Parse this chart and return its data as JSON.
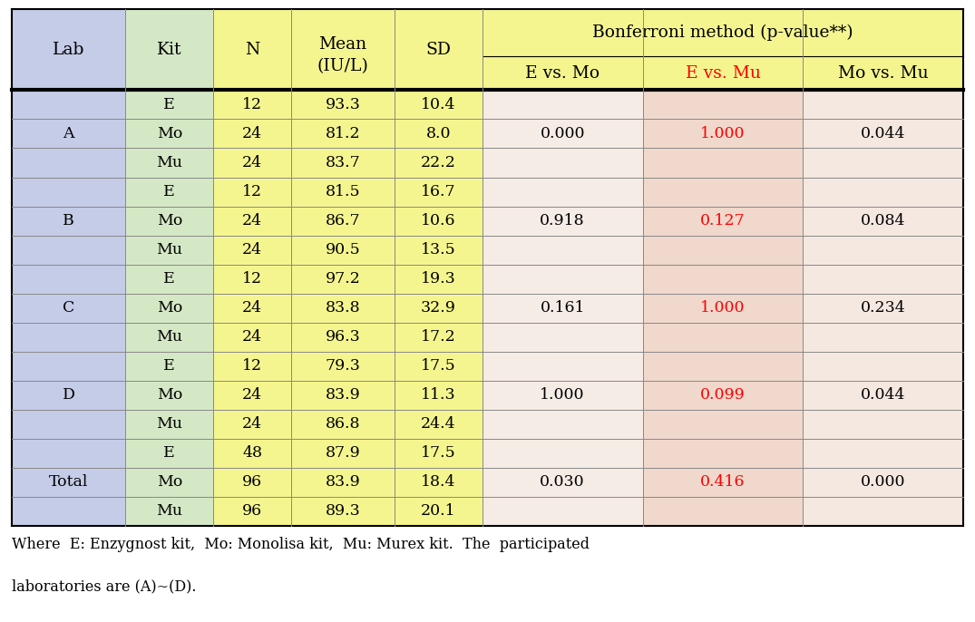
{
  "rows": [
    [
      "A",
      "E",
      "12",
      "93.3",
      "10.4",
      "",
      "",
      ""
    ],
    [
      "A",
      "Mo",
      "24",
      "81.2",
      "8.0",
      "0.000",
      "1.000",
      "0.044"
    ],
    [
      "A",
      "Mu",
      "24",
      "83.7",
      "22.2",
      "",
      "",
      ""
    ],
    [
      "B",
      "E",
      "12",
      "81.5",
      "16.7",
      "",
      "",
      ""
    ],
    [
      "B",
      "Mo",
      "24",
      "86.7",
      "10.6",
      "0.918",
      "0.127",
      "0.084"
    ],
    [
      "B",
      "Mu",
      "24",
      "90.5",
      "13.5",
      "",
      "",
      ""
    ],
    [
      "C",
      "E",
      "12",
      "97.2",
      "19.3",
      "",
      "",
      ""
    ],
    [
      "C",
      "Mo",
      "24",
      "83.8",
      "32.9",
      "0.161",
      "1.000",
      "0.234"
    ],
    [
      "C",
      "Mu",
      "24",
      "96.3",
      "17.2",
      "",
      "",
      ""
    ],
    [
      "D",
      "E",
      "12",
      "79.3",
      "17.5",
      "",
      "",
      ""
    ],
    [
      "D",
      "Mo",
      "24",
      "83.9",
      "11.3",
      "1.000",
      "0.099",
      "0.044"
    ],
    [
      "D",
      "Mu",
      "24",
      "86.8",
      "24.4",
      "",
      "",
      ""
    ],
    [
      "Total",
      "E",
      "48",
      "87.9",
      "17.5",
      "",
      "",
      ""
    ],
    [
      "Total",
      "Mo",
      "96",
      "83.9",
      "18.4",
      "0.030",
      "0.416",
      "0.000"
    ],
    [
      "Total",
      "Mu",
      "96",
      "89.3",
      "20.1",
      "",
      "",
      ""
    ]
  ],
  "bonf_data": [
    [
      "0.000",
      "1.000",
      "0.044"
    ],
    [
      "0.918",
      "0.127",
      "0.084"
    ],
    [
      "0.161",
      "1.000",
      "0.234"
    ],
    [
      "1.000",
      "0.099",
      "0.044"
    ],
    [
      "0.030",
      "0.416",
      "0.000"
    ]
  ],
  "lab_labels": [
    "A",
    "B",
    "C",
    "D",
    "Total"
  ],
  "lab_mid_rows": [
    1,
    4,
    7,
    10,
    13
  ],
  "group_mid_rows": [
    1,
    4,
    7,
    10,
    13
  ],
  "col_bg_header": [
    "#c5cce8",
    "#d4e8c5",
    "#f5f5a0",
    "#f5f5a0",
    "#f5f5a0",
    "#f5f5a0",
    "#f5f5a0",
    "#f5f5a0"
  ],
  "col_bg_data": [
    "#c5cce8",
    "#d4e8c5",
    "#f5f5a0",
    "#f5f5a0",
    "#f5f5a0",
    "#f0dfd5",
    "#f0dfd5",
    "#f0dfd5"
  ],
  "evmo_col_bg": "#f5ede8",
  "evmu_col_bg": "#f0d8cc",
  "movmu_col_bg": "#f0dfd5",
  "bonf_header_bg": "#f5f5a0",
  "col_widths_rel": [
    1.1,
    0.85,
    0.75,
    1.0,
    0.85,
    1.55,
    1.55,
    1.55
  ],
  "header1_labels": [
    "Lab",
    "Kit",
    "N",
    "Mean\n(IU/L)",
    "SD",
    "Bonferroni method (p-value**)"
  ],
  "subheader_labels": [
    "E vs. Mo",
    "E vs. Mu",
    "Mo vs. Mu"
  ],
  "subheader_colors": [
    "black",
    "red",
    "black"
  ],
  "footnote_line1": "Where  E: Enzygnost kit,  Mo: Monolisa kit,  Mu: Murex kit.  The  participated",
  "footnote_line2": "laboratories are (A)~(D).",
  "figsize": [
    10.75,
    6.86
  ],
  "dpi": 100
}
